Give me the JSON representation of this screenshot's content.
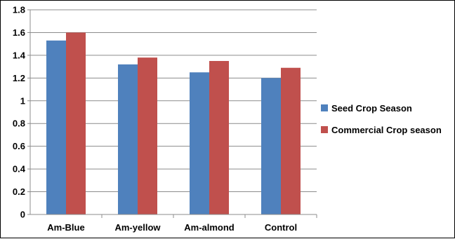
{
  "chart_data": {
    "type": "bar",
    "title": "",
    "xlabel": "",
    "ylabel": "",
    "categories": [
      "Am-Blue",
      "Am-yellow",
      "Am-almond",
      "Control"
    ],
    "series": [
      {
        "name": "Seed Crop Season",
        "values": [
          1.53,
          1.32,
          1.25,
          1.2
        ],
        "color": "#4f81bd"
      },
      {
        "name": "Commercial Crop season",
        "values": [
          1.6,
          1.38,
          1.35,
          1.29
        ],
        "color": "#c0504d"
      }
    ],
    "ylim": [
      0,
      1.8
    ],
    "yticks": [
      "0",
      "0.2",
      "0.4",
      "0.6",
      "0.8",
      "1",
      "1.2",
      "1.4",
      "1.6",
      "1.8"
    ],
    "grid": true,
    "legend_position": "right"
  }
}
